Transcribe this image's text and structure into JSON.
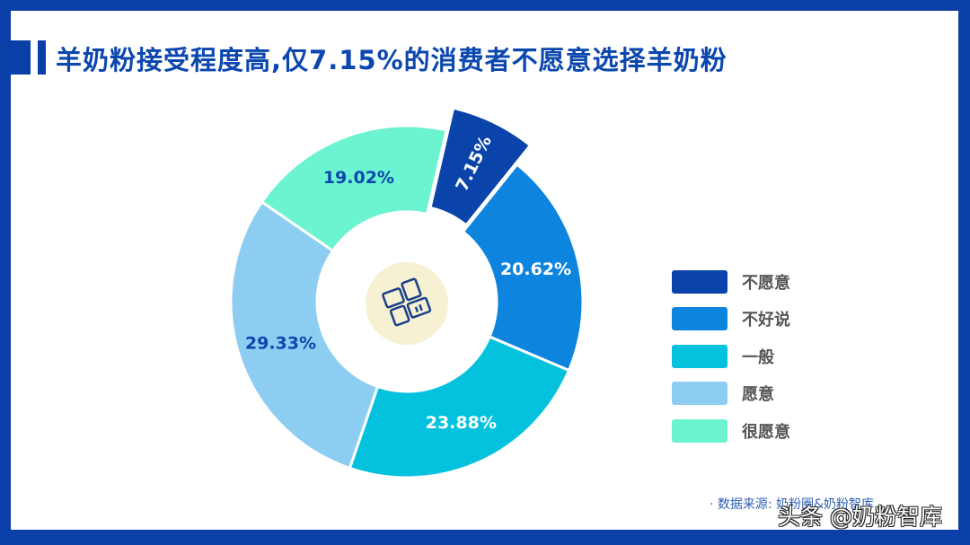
{
  "title": "羊奶粉接受程度高,仅7.15%的消费者不愿意选择羊奶粉",
  "source": "· 数据来源: 奶粉圈&奶粉智库",
  "watermark": "头条 @奶粉智库",
  "center_icon": "dashboard-grid-icon",
  "colors": {
    "frame": "#0a3fa8",
    "title": "#0b47ae",
    "center_circle": "#f6f1d2"
  },
  "legend": [
    {
      "label": "不愿意",
      "color": "#0a44aa"
    },
    {
      "label": "不好说",
      "color": "#0d84dd"
    },
    {
      "label": "一般",
      "color": "#04c2de"
    },
    {
      "label": "愿意",
      "color": "#8ecdf2"
    },
    {
      "label": "很愿意",
      "color": "#6cf4d0"
    }
  ],
  "chart_data": {
    "type": "pie",
    "subtype": "donut",
    "title": "羊奶粉接受程度高,仅7.15%的消费者不愿意选择羊奶粉",
    "categories": [
      "不愿意",
      "不好说",
      "一般",
      "愿意",
      "很愿意"
    ],
    "values": [
      7.15,
      20.62,
      23.88,
      29.33,
      19.02
    ],
    "labels": [
      "7.15%",
      "20.62%",
      "23.88%",
      "29.33%",
      "19.02%"
    ],
    "colors": [
      "#0a44aa",
      "#0d84dd",
      "#04c2de",
      "#8ecdf2",
      "#6cf4d0"
    ],
    "exploded": [
      "不愿意"
    ],
    "legend_position": "right",
    "source": "数据来源: 奶粉圈&奶粉智库"
  }
}
